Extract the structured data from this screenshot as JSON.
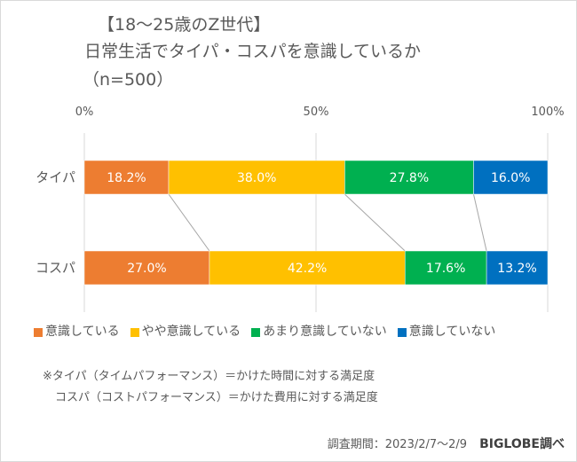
{
  "title": {
    "line1": "【18～25歳のZ世代】",
    "line2": "日常生活でタイパ・コスパを意識しているか",
    "line3": "（n=500）"
  },
  "chart_data": {
    "type": "bar",
    "orientation": "horizontal-stacked-100",
    "categories": [
      "タイパ",
      "コスパ"
    ],
    "series": [
      {
        "name": "意識している",
        "color": "#ED7D31",
        "values": [
          18.2,
          27.0
        ]
      },
      {
        "name": "やや意識している",
        "color": "#FFC000",
        "values": [
          38.0,
          42.2
        ]
      },
      {
        "name": "あまり意識していない",
        "color": "#00B050",
        "values": [
          27.8,
          17.6
        ]
      },
      {
        "name": "意識していない",
        "color": "#0070C0",
        "values": [
          16.0,
          13.2
        ]
      }
    ],
    "xlim": [
      0,
      100
    ],
    "xticks": [
      "0%",
      "50%",
      "100%"
    ],
    "legend": "bottom",
    "grid": true
  },
  "notes": {
    "line1": "※タイパ（タイムパフォーマンス）＝かけた時間に対する満足度",
    "line2": "コスパ（コストパフォーマンス）＝かけた費用に対する満足度"
  },
  "source": {
    "period": "調査期間：2023/2/7～2/9",
    "brand": "BIGLOBE調べ"
  }
}
